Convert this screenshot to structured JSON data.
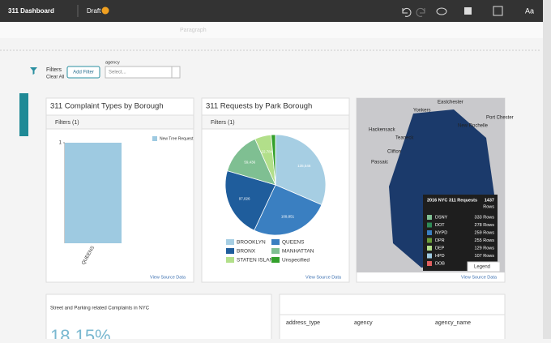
{
  "header": {
    "title": "311 Dashboard",
    "status": "Draft",
    "font_button": "Aa"
  },
  "toolbar": {
    "style": "Paragraph"
  },
  "filters": {
    "label": "Filters",
    "clear": "Clear All",
    "add": "Add Filter",
    "field": "agency",
    "placeholder": "Select..."
  },
  "cards": [
    {
      "title": "311 Complaint Types by Borough",
      "filters": "Filters (1)",
      "footer": "View Source Data",
      "chart": {
        "type": "bar",
        "categories": [
          "QUEENS"
        ],
        "series": [
          {
            "name": "New Tree Request",
            "color": "#9ecae1",
            "values": [
              1
            ]
          }
        ],
        "ylim": [
          0,
          1
        ],
        "yticks": [
          1
        ]
      }
    },
    {
      "title": "311 Requests by Park Borough",
      "filters": "Filters (1)",
      "footer": "View Source Data",
      "chart": {
        "type": "pie",
        "categories": [
          "BROOKLYN",
          "QUEENS",
          "BRONX",
          "MANHATTAN",
          "STATEN ISLAND",
          "Unspecified"
        ],
        "values": [
          135546,
          109851,
          97026,
          59436,
          22784,
          6000
        ],
        "value_labels": [
          "135,546",
          "109,851",
          "97,026",
          "59,436",
          "22,784",
          null
        ],
        "colors": [
          "#a6cee3",
          "#3a7fc1",
          "#1f5d9c",
          "#7fbf92",
          "#b2df8a",
          "#33a02c"
        ]
      }
    },
    {
      "footer": "View Source Data",
      "map": {
        "places": [
          "Yonkers",
          "Eastchester",
          "Hackensack",
          "New Rochelle",
          "Teaneck",
          "Clifton",
          "Passaic",
          "Port Chester"
        ],
        "tooltip": {
          "title": "2016 NYC 311 Requests",
          "total": "1437",
          "total_unit": "Rows",
          "rows": [
            [
              "DSNY",
              "333 Rows"
            ],
            [
              "DOT",
              "278 Rows"
            ],
            [
              "NYPD",
              "259 Rows"
            ],
            [
              "DPR",
              "255 Rows"
            ],
            [
              "DEP",
              "129 Rows"
            ],
            [
              "HPD",
              "107 Rows"
            ],
            [
              "DOB",
              "44 Rows"
            ]
          ]
        },
        "legend": "Legend"
      }
    }
  ],
  "kpi": {
    "title": "Street and Parking related Complaints in NYC",
    "value": "18.15%"
  },
  "table": {
    "columns": [
      "address_type",
      "agency",
      "agency_name"
    ]
  }
}
